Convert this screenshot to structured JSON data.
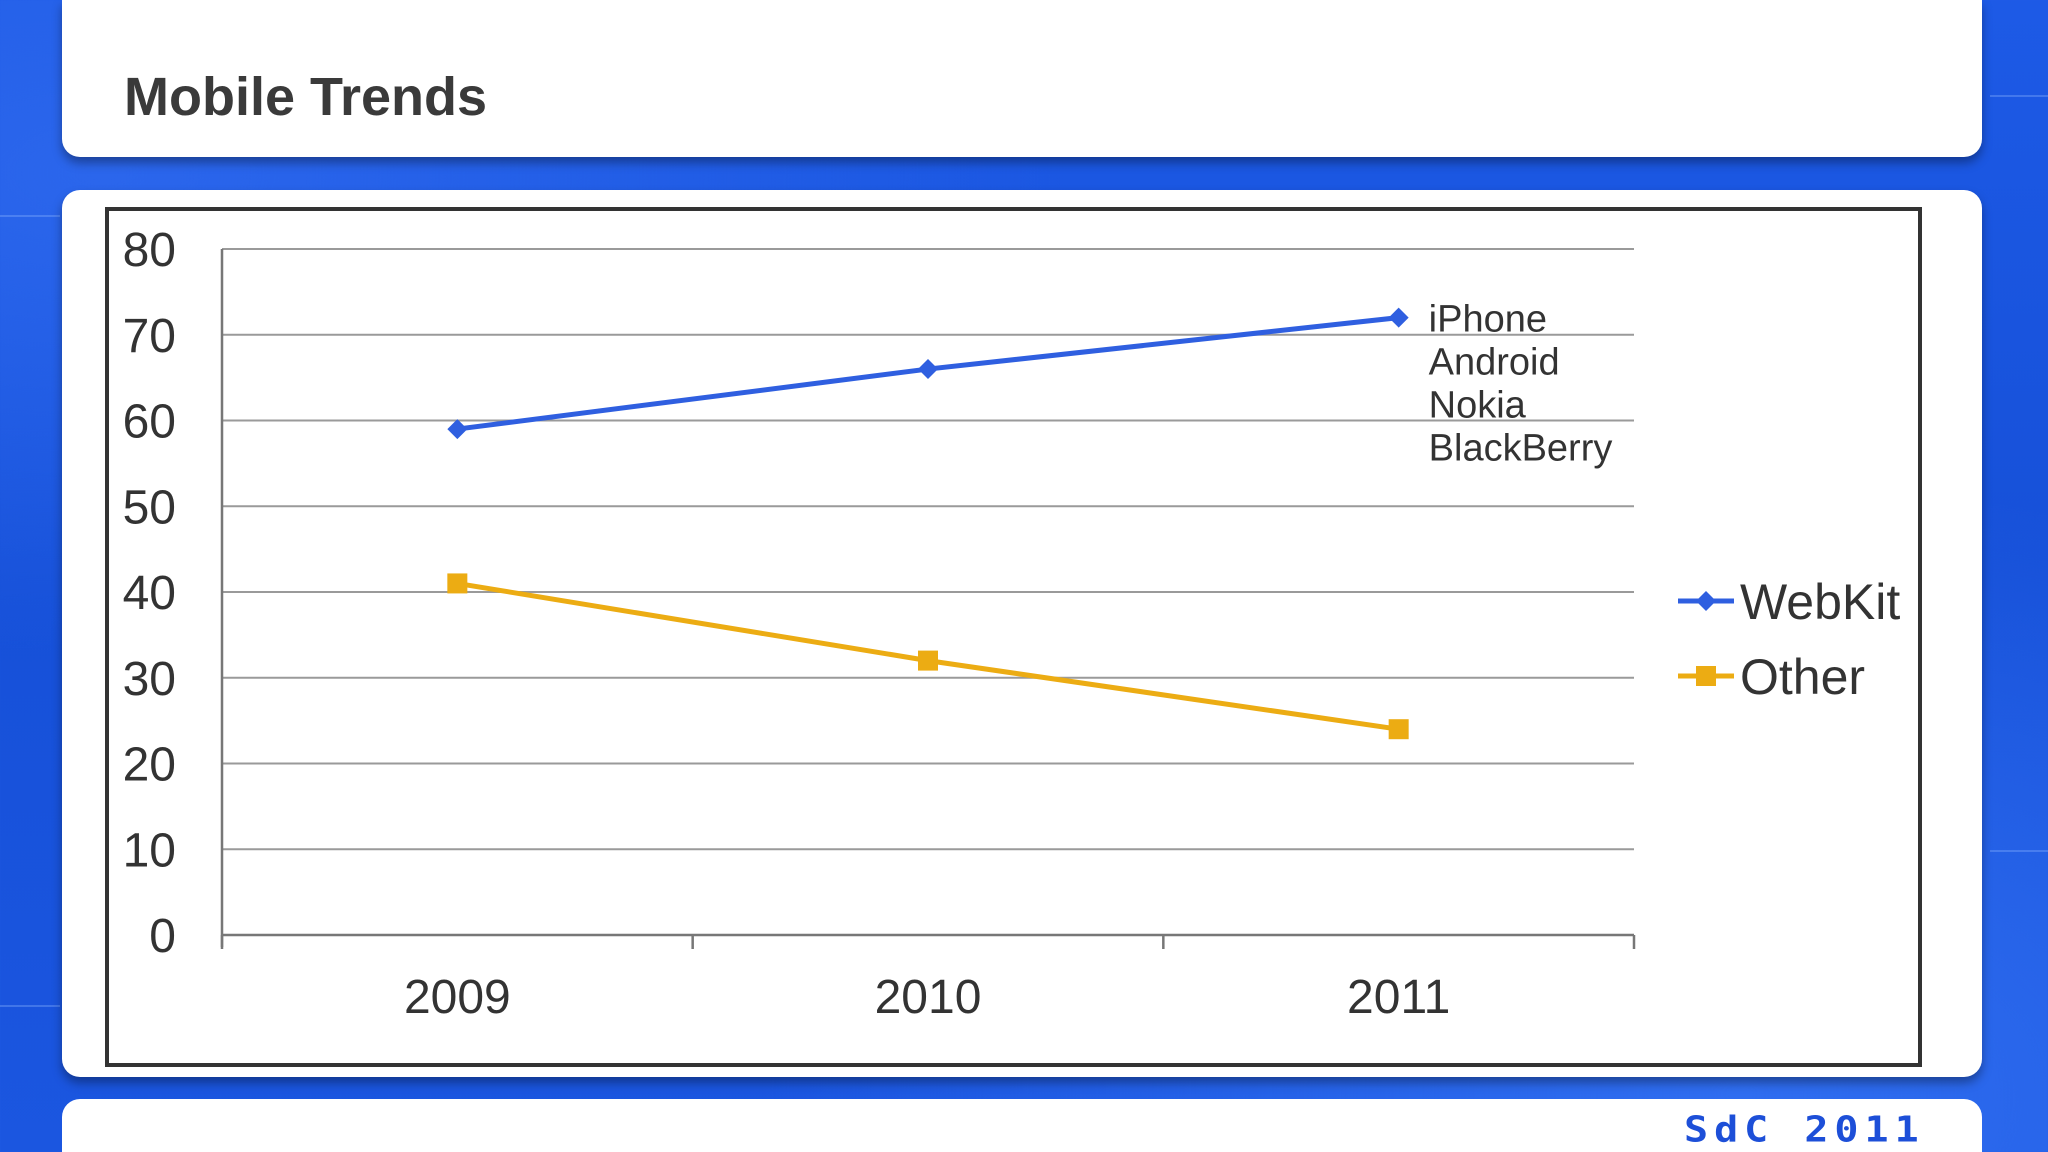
{
  "slide": {
    "title": "Mobile Trends",
    "footer": "SdC 2011"
  },
  "chart_data": {
    "type": "line",
    "categories": [
      "2009",
      "2010",
      "2011"
    ],
    "series": [
      {
        "name": "WebKit",
        "values": [
          59,
          66,
          72
        ],
        "color": "#2f5fe0",
        "marker": "diamond"
      },
      {
        "name": "Other",
        "values": [
          41,
          32,
          24
        ],
        "color": "#ecac13",
        "marker": "square"
      }
    ],
    "ylim": [
      0,
      80
    ],
    "yticks": [
      0,
      10,
      20,
      30,
      40,
      50,
      60,
      70,
      80
    ],
    "grid": true,
    "legend": "right",
    "annotation": {
      "lines": [
        "iPhone",
        "Android",
        "Nokia",
        "BlackBerry"
      ]
    }
  }
}
